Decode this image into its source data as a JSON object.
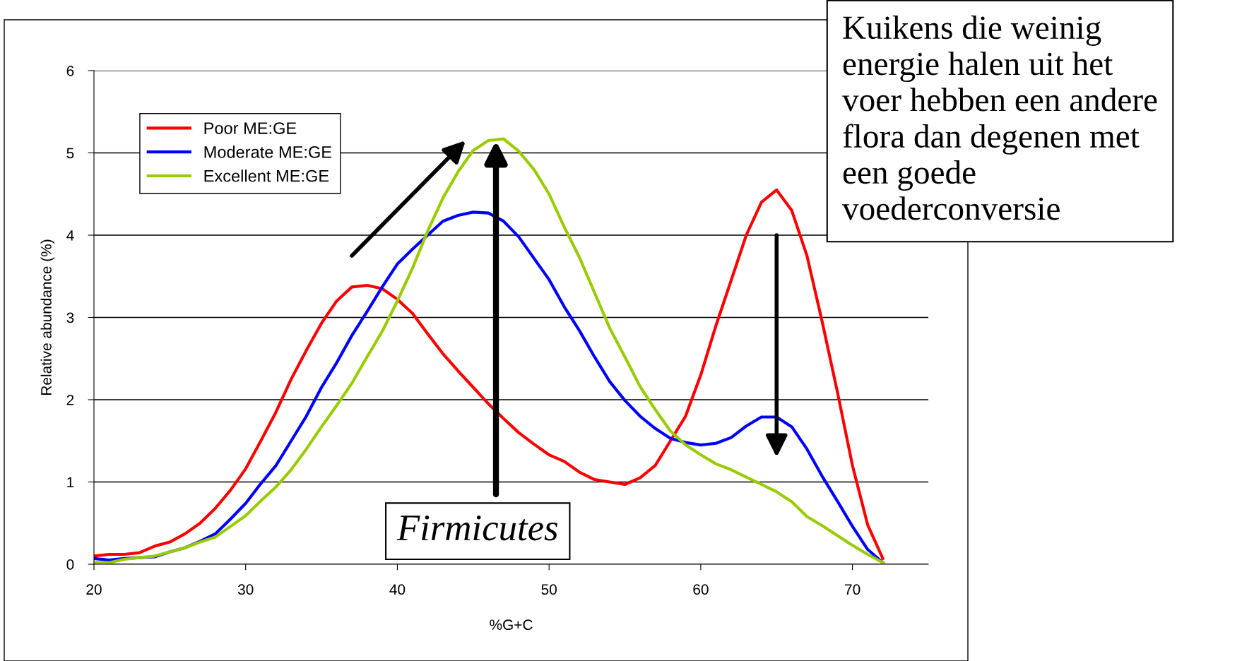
{
  "chart_data": {
    "type": "line",
    "xlabel": "%G+C",
    "ylabel": "Relative abundance (%)",
    "x": [
      20,
      21,
      22,
      23,
      24,
      25,
      26,
      27,
      28,
      29,
      30,
      31,
      32,
      33,
      34,
      35,
      36,
      37,
      38,
      39,
      40,
      41,
      42,
      43,
      44,
      45,
      46,
      47,
      48,
      49,
      50,
      51,
      52,
      53,
      54,
      55,
      56,
      57,
      58,
      59,
      60,
      61,
      62,
      63,
      64,
      65,
      66,
      67,
      68,
      69,
      70,
      71,
      72
    ],
    "series": [
      {
        "name": "Poor ME:GE",
        "color": "#ff0000",
        "values": [
          0.1,
          0.12,
          0.12,
          0.14,
          0.22,
          0.27,
          0.37,
          0.5,
          0.68,
          0.9,
          1.16,
          1.5,
          1.85,
          2.25,
          2.6,
          2.93,
          3.2,
          3.37,
          3.39,
          3.35,
          3.22,
          3.05,
          2.8,
          2.56,
          2.35,
          2.15,
          1.95,
          1.77,
          1.6,
          1.46,
          1.33,
          1.25,
          1.12,
          1.03,
          1.0,
          0.97,
          1.05,
          1.2,
          1.5,
          1.8,
          2.3,
          2.9,
          3.45,
          4.0,
          4.4,
          4.55,
          4.3,
          3.75,
          2.95,
          2.1,
          1.2,
          0.48,
          0.07
        ]
      },
      {
        "name": "Moderate ME:GE",
        "color": "#0000ff",
        "values": [
          0.07,
          0.05,
          0.07,
          0.08,
          0.09,
          0.15,
          0.2,
          0.28,
          0.37,
          0.55,
          0.74,
          0.98,
          1.2,
          1.5,
          1.8,
          2.15,
          2.45,
          2.78,
          3.07,
          3.37,
          3.65,
          3.83,
          4.0,
          4.17,
          4.24,
          4.28,
          4.27,
          4.17,
          3.98,
          3.72,
          3.46,
          3.13,
          2.84,
          2.52,
          2.22,
          1.99,
          1.8,
          1.65,
          1.53,
          1.48,
          1.45,
          1.47,
          1.54,
          1.68,
          1.79,
          1.79,
          1.67,
          1.4,
          1.07,
          0.77,
          0.46,
          0.18,
          0.02
        ]
      },
      {
        "name": "Excellent ME:GE",
        "color": "#99cc00",
        "values": [
          0.02,
          0.02,
          0.06,
          0.08,
          0.1,
          0.15,
          0.2,
          0.27,
          0.33,
          0.46,
          0.59,
          0.77,
          0.94,
          1.15,
          1.4,
          1.67,
          1.93,
          2.2,
          2.52,
          2.83,
          3.2,
          3.6,
          4.05,
          4.45,
          4.77,
          5.03,
          5.15,
          5.17,
          5.02,
          4.8,
          4.5,
          4.1,
          3.73,
          3.3,
          2.87,
          2.52,
          2.16,
          1.88,
          1.62,
          1.45,
          1.33,
          1.22,
          1.15,
          1.06,
          0.97,
          0.88,
          0.76,
          0.58,
          0.47,
          0.35,
          0.23,
          0.12,
          0.02
        ]
      }
    ],
    "xlim": [
      20,
      75
    ],
    "xticks": [
      20,
      30,
      40,
      50,
      60,
      70
    ],
    "ylim": [
      0,
      6
    ],
    "yticks": [
      0,
      1,
      2,
      3,
      4,
      5,
      6
    ],
    "grid": "y",
    "legend": "top left",
    "marker": "none",
    "line_style": "solid",
    "annotations": [
      "Firmicutes",
      "Kuikens die weinig\nenergie halen uit het\nvoer hebben een andere\nflora dan degenen met\neen goede\nvoederconversie"
    ]
  }
}
